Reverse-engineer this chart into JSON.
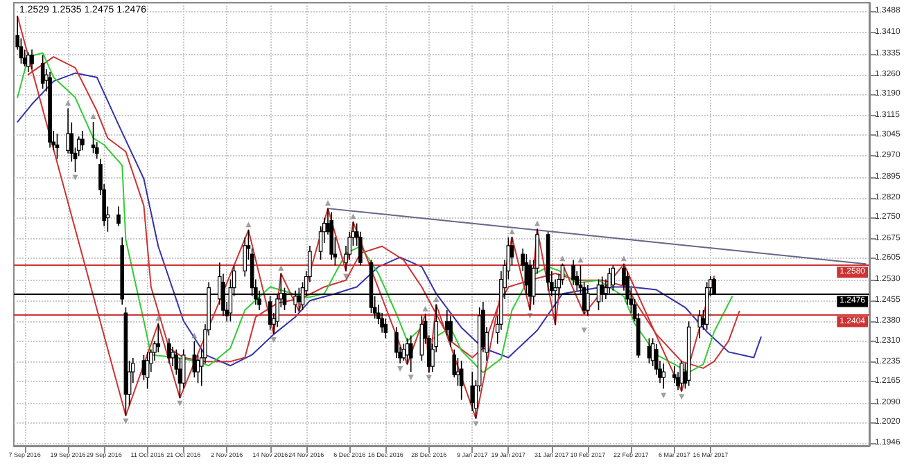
{
  "chart_data": {
    "type": "candlestick",
    "annotations": [
      "1.2529 1.2535 1.2475 1.2476"
    ],
    "color": "#000000",
    "x": [
      "2016-09-05",
      "2016-09-06",
      "2016-09-07",
      "2016-09-08",
      "2016-09-09",
      "2016-09-12",
      "2016-09-13",
      "2016-09-14",
      "2016-09-15",
      "2016-09-16",
      "2016-09-19",
      "2016-09-20",
      "2016-09-21",
      "2016-09-22",
      "2016-09-23",
      "2016-09-26",
      "2016-09-27",
      "2016-09-28",
      "2016-09-29",
      "2016-09-30",
      "2016-10-03",
      "2016-10-04",
      "2016-10-05",
      "2016-10-06",
      "2016-10-07",
      "2016-10-10",
      "2016-10-11",
      "2016-10-12",
      "2016-10-13",
      "2016-10-14",
      "2016-10-17",
      "2016-10-18",
      "2016-10-19",
      "2016-10-20",
      "2016-10-21",
      "2016-10-24",
      "2016-10-25",
      "2016-10-26",
      "2016-10-27",
      "2016-10-28",
      "2016-10-31",
      "2016-11-01",
      "2016-11-02",
      "2016-11-03",
      "2016-11-04",
      "2016-11-07",
      "2016-11-08",
      "2016-11-09",
      "2016-11-10",
      "2016-11-11",
      "2016-11-14",
      "2016-11-15",
      "2016-11-16",
      "2016-11-17",
      "2016-11-18",
      "2016-11-21",
      "2016-11-22",
      "2016-11-23",
      "2016-11-24",
      "2016-11-25",
      "2016-11-28",
      "2016-11-29",
      "2016-11-30",
      "2016-12-01",
      "2016-12-02",
      "2016-12-05",
      "2016-12-06",
      "2016-12-07",
      "2016-12-08",
      "2016-12-09",
      "2016-12-12",
      "2016-12-13",
      "2016-12-14",
      "2016-12-15",
      "2016-12-16",
      "2016-12-19",
      "2016-12-20",
      "2016-12-21",
      "2016-12-22",
      "2016-12-23",
      "2016-12-26",
      "2016-12-27",
      "2016-12-28",
      "2016-12-29",
      "2016-12-30",
      "2017-01-02",
      "2017-01-03",
      "2017-01-04",
      "2017-01-05",
      "2017-01-06",
      "2017-01-09",
      "2017-01-10",
      "2017-01-11",
      "2017-01-12",
      "2017-01-13",
      "2017-01-16",
      "2017-01-17",
      "2017-01-18",
      "2017-01-19",
      "2017-01-20",
      "2017-01-23",
      "2017-01-24",
      "2017-01-25",
      "2017-01-26",
      "2017-01-27",
      "2017-01-30",
      "2017-01-31",
      "2017-02-01",
      "2017-02-02",
      "2017-02-03",
      "2017-02-06",
      "2017-02-07",
      "2017-02-08",
      "2017-02-09",
      "2017-02-10",
      "2017-02-13",
      "2017-02-14",
      "2017-02-15",
      "2017-02-16",
      "2017-02-17",
      "2017-02-20",
      "2017-02-21",
      "2017-02-22",
      "2017-02-23",
      "2017-02-24",
      "2017-02-27",
      "2017-02-28",
      "2017-03-01",
      "2017-03-02",
      "2017-03-03",
      "2017-03-06",
      "2017-03-07",
      "2017-03-08",
      "2017-03-09",
      "2017-03-10",
      "2017-03-13",
      "2017-03-14",
      "2017-03-15",
      "2017-03-16",
      "2017-03-17"
    ],
    "ohlc": [
      [
        1.34,
        1.3469,
        1.335,
        1.336
      ],
      [
        1.336,
        1.339,
        1.33,
        1.332
      ],
      [
        1.332,
        1.335,
        1.329,
        1.33
      ],
      [
        1.329,
        1.334,
        1.327,
        1.333
      ],
      [
        1.333,
        1.335,
        1.328,
        1.33
      ],
      [
        1.33,
        1.333,
        1.321,
        1.323
      ],
      [
        1.324,
        1.328,
        1.32,
        1.326
      ],
      [
        1.325,
        1.327,
        1.3,
        1.302
      ],
      [
        1.302,
        1.306,
        1.299,
        1.301
      ],
      [
        1.301,
        1.305,
        1.296,
        1.3
      ],
      [
        1.299,
        1.314,
        1.298,
        1.305
      ],
      [
        1.305,
        1.309,
        1.295,
        1.298
      ],
      [
        1.298,
        1.3,
        1.2913,
        1.296
      ],
      [
        1.299,
        1.304,
        1.297,
        1.303
      ],
      [
        1.303,
        1.306,
        1.299,
        1.301
      ],
      [
        1.301,
        1.3092,
        1.298,
        1.3
      ],
      [
        1.3,
        1.302,
        1.296,
        1.298
      ],
      [
        1.294,
        1.296,
        1.283,
        1.285
      ],
      [
        1.285,
        1.287,
        1.272,
        1.274
      ],
      [
        1.275,
        1.279,
        1.27,
        1.276
      ],
      [
        1.276,
        1.279,
        1.272,
        1.273
      ],
      [
        1.265,
        1.268,
        1.244,
        1.246
      ],
      [
        1.241,
        1.243,
        1.2044,
        1.212
      ],
      [
        1.212,
        1.224,
        1.208,
        1.22
      ],
      [
        1.22,
        1.225,
        1.216,
        1.223
      ],
      [
        1.224,
        1.226,
        1.217,
        1.219
      ],
      [
        1.218,
        1.227,
        1.214,
        1.224
      ],
      [
        1.223,
        1.228,
        1.22,
        1.227
      ],
      [
        1.227,
        1.231,
        1.224,
        1.23
      ],
      [
        1.23,
        1.2372,
        1.227,
        1.229
      ],
      [
        1.23,
        1.232,
        1.223,
        1.225
      ],
      [
        1.225,
        1.229,
        1.222,
        1.227
      ],
      [
        1.226,
        1.228,
        1.219,
        1.221
      ],
      [
        1.221,
        1.225,
        1.2107,
        1.216
      ],
      [
        1.216,
        1.228,
        1.214,
        1.226
      ],
      [
        1.226,
        1.231,
        1.218,
        1.22
      ],
      [
        1.22,
        1.226,
        1.216,
        1.224
      ],
      [
        1.222,
        1.228,
        1.215,
        1.225
      ],
      [
        1.225,
        1.237,
        1.223,
        1.235
      ],
      [
        1.235,
        1.252,
        1.233,
        1.25
      ],
      [
        1.246,
        1.259,
        1.244,
        1.254
      ],
      [
        1.252,
        1.255,
        1.24,
        1.242
      ],
      [
        1.242,
        1.245,
        1.238,
        1.24
      ],
      [
        1.241,
        1.253,
        1.238,
        1.25
      ],
      [
        1.25,
        1.258,
        1.247,
        1.256
      ],
      [
        1.256,
        1.268,
        1.254,
        1.265
      ],
      [
        1.265,
        1.2706,
        1.26,
        1.264
      ],
      [
        1.262,
        1.264,
        1.247,
        1.25
      ],
      [
        1.25,
        1.253,
        1.244,
        1.246
      ],
      [
        1.246,
        1.249,
        1.242,
        1.244
      ],
      [
        1.245,
        1.247,
        1.235,
        1.237
      ],
      [
        1.237,
        1.241,
        1.2334,
        1.239
      ],
      [
        1.238,
        1.248,
        1.236,
        1.246
      ],
      [
        1.246,
        1.2551,
        1.243,
        1.248
      ],
      [
        1.248,
        1.25,
        1.242,
        1.244
      ],
      [
        1.244,
        1.249,
        1.241,
        1.247
      ],
      [
        1.247,
        1.25,
        1.2416,
        1.245
      ],
      [
        1.244,
        1.252,
        1.242,
        1.25
      ],
      [
        1.249,
        1.256,
        1.247,
        1.254
      ],
      [
        1.254,
        1.265,
        1.252,
        1.263
      ],
      [
        1.263,
        1.272,
        1.26,
        1.27
      ],
      [
        1.27,
        1.275,
        1.266,
        1.273
      ],
      [
        1.273,
        1.2783,
        1.269,
        1.27
      ],
      [
        1.274,
        1.277,
        1.26,
        1.262
      ],
      [
        1.262,
        1.268,
        1.258,
        1.261
      ],
      [
        1.259,
        1.265,
        1.256,
        1.262
      ],
      [
        1.262,
        1.27,
        1.26,
        1.268
      ],
      [
        1.268,
        1.2735,
        1.265,
        1.27
      ],
      [
        1.27,
        1.273,
        1.265,
        1.268
      ],
      [
        1.268,
        1.27,
        1.258,
        1.259
      ],
      [
        1.259,
        1.26,
        1.241,
        1.243
      ],
      [
        1.243,
        1.247,
        1.239,
        1.241
      ],
      [
        1.241,
        1.244,
        1.237,
        1.239
      ],
      [
        1.239,
        1.241,
        1.234,
        1.236
      ],
      [
        1.237,
        1.239,
        1.232,
        1.234
      ],
      [
        1.234,
        1.236,
        1.225,
        1.227
      ],
      [
        1.227,
        1.229,
        1.223,
        1.225
      ],
      [
        1.225,
        1.23,
        1.224,
        1.228
      ],
      [
        1.226,
        1.232,
        1.2227,
        1.23
      ],
      [
        1.23,
        1.233,
        1.22,
        1.225
      ],
      [
        1.226,
        1.24,
        1.224,
        1.237
      ],
      [
        1.238,
        1.2406,
        1.23,
        1.232
      ],
      [
        1.232,
        1.233,
        1.2198,
        1.222
      ],
      [
        1.222,
        1.23,
        1.22,
        1.228
      ],
      [
        1.229,
        1.244,
        1.227,
        1.238
      ],
      [
        1.238,
        1.242,
        1.233,
        1.235
      ],
      [
        1.238,
        1.24,
        1.229,
        1.231
      ],
      [
        1.226,
        1.228,
        1.218,
        1.219
      ],
      [
        1.219,
        1.225,
        1.215,
        1.22
      ],
      [
        1.221,
        1.224,
        1.21,
        1.215
      ],
      [
        1.215,
        1.22,
        1.206,
        1.209
      ],
      [
        1.207,
        1.217,
        1.2034,
        1.215
      ],
      [
        1.215,
        1.243,
        1.213,
        1.24
      ],
      [
        1.242,
        1.245,
        1.227,
        1.229
      ],
      [
        1.227,
        1.236,
        1.224,
        1.234
      ],
      [
        1.234,
        1.24,
        1.23,
        1.237
      ],
      [
        1.237,
        1.256,
        1.235,
        1.253
      ],
      [
        1.25,
        1.26,
        1.246,
        1.258
      ],
      [
        1.256,
        1.268,
        1.253,
        1.265
      ],
      [
        1.265,
        1.2681,
        1.258,
        1.261
      ],
      [
        1.262,
        1.264,
        1.256,
        1.258
      ],
      [
        1.259,
        1.262,
        1.248,
        1.251
      ],
      [
        1.258,
        1.26,
        1.242,
        1.247
      ],
      [
        1.247,
        1.26,
        1.244,
        1.257
      ],
      [
        1.257,
        1.271,
        1.255,
        1.269
      ],
      [
        1.269,
        1.27,
        1.249,
        1.252
      ],
      [
        1.252,
        1.256,
        1.247,
        1.249
      ],
      [
        1.249,
        1.253,
        1.2368,
        1.25
      ],
      [
        1.25,
        1.255,
        1.247,
        1.253
      ],
      [
        1.253,
        1.2585,
        1.251,
        1.258
      ],
      [
        1.258,
        1.26,
        1.251,
        1.253
      ],
      [
        1.254,
        1.256,
        1.249,
        1.251
      ],
      [
        1.251,
        1.258,
        1.248,
        1.25
      ],
      [
        1.25,
        1.252,
        1.2406,
        1.242
      ],
      [
        1.242,
        1.251,
        1.24,
        1.248
      ],
      [
        1.245,
        1.253,
        1.242,
        1.251
      ],
      [
        1.251,
        1.254,
        1.245,
        1.248
      ],
      [
        1.248,
        1.253,
        1.246,
        1.25
      ],
      [
        1.25,
        1.257,
        1.248,
        1.255
      ],
      [
        1.251,
        1.258,
        1.249,
        1.257
      ],
      [
        1.257,
        1.2585,
        1.249,
        1.251
      ],
      [
        1.254,
        1.256,
        1.244,
        1.246
      ],
      [
        1.246,
        1.25,
        1.241,
        1.244
      ],
      [
        1.244,
        1.246,
        1.238,
        1.239
      ],
      [
        1.239,
        1.241,
        1.225,
        1.226
      ],
      [
        1.229,
        1.232,
        1.223,
        1.225
      ],
      [
        1.224,
        1.232,
        1.222,
        1.23
      ],
      [
        1.228,
        1.23,
        1.219,
        1.221
      ],
      [
        1.221,
        1.224,
        1.216,
        1.218
      ],
      [
        1.218,
        1.223,
        1.214,
        1.22
      ],
      [
        1.219,
        1.222,
        1.216,
        1.218
      ],
      [
        1.218,
        1.22,
        1.2135,
        1.215
      ],
      [
        1.216,
        1.224,
        1.2131,
        1.223
      ],
      [
        1.22,
        1.223,
        1.214,
        1.216
      ],
      [
        1.217,
        1.238,
        1.215,
        1.236
      ],
      [
        1.236,
        1.242,
        1.232,
        1.24
      ],
      [
        1.239,
        1.242,
        1.235,
        1.237
      ],
      [
        1.237,
        1.252,
        1.235,
        1.25
      ],
      [
        1.25,
        1.2541,
        1.247,
        1.2529
      ],
      [
        1.2529,
        1.2535,
        1.2475,
        1.2476
      ]
    ],
    "series": [
      {
        "type": "line",
        "color": "#3333aa",
        "x": [
          "2016-09-05",
          "2016-09-09",
          "2016-09-15",
          "2016-09-21",
          "2016-09-27",
          "2016-10-03",
          "2016-10-10",
          "2016-10-14",
          "2016-10-21",
          "2016-10-27",
          "2016-11-03",
          "2016-11-09",
          "2016-11-15",
          "2016-11-21",
          "2016-11-25",
          "2016-12-02",
          "2016-12-08",
          "2016-12-14",
          "2016-12-20",
          "2016-12-26",
          "2016-12-30",
          "2017-01-06",
          "2017-01-12",
          "2017-01-19",
          "2017-01-27",
          "2017-02-03",
          "2017-02-14",
          "2017-02-22",
          "2017-03-01",
          "2017-03-09",
          "2017-03-15",
          "2017-03-21",
          "2017-03-28",
          "2017-03-30"
        ],
        "values": [
          1.3092,
          1.3155,
          1.3237,
          1.3266,
          1.3251,
          1.3082,
          1.2889,
          1.2648,
          1.2382,
          1.2261,
          1.2222,
          1.2261,
          1.2334,
          1.2396,
          1.2454,
          1.2479,
          1.2503,
          1.2575,
          1.2609,
          1.2575,
          1.2479,
          1.2358,
          1.2285,
          1.2251,
          1.2348,
          1.2479,
          1.2503,
          1.2503,
          1.2493,
          1.243,
          1.2343,
          1.2271,
          1.2251,
          1.2324
        ]
      },
      {
        "type": "line",
        "color": "#cc3333",
        "x": [
          "2016-09-08",
          "2016-09-15",
          "2016-09-21",
          "2016-09-27",
          "2016-09-30",
          "2016-10-05",
          "2016-10-10",
          "2016-10-12",
          "2016-10-17",
          "2016-10-21",
          "2016-10-27",
          "2016-11-03",
          "2016-11-07",
          "2016-11-10",
          "2016-11-16",
          "2016-11-23",
          "2016-11-29",
          "2016-12-05",
          "2016-12-09",
          "2016-12-15",
          "2016-12-21",
          "2016-12-26",
          "2017-01-03",
          "2017-01-09",
          "2017-01-12",
          "2017-01-16",
          "2017-01-19",
          "2017-01-25",
          "2017-02-01",
          "2017-02-07",
          "2017-02-14",
          "2017-02-21",
          "2017-02-23",
          "2017-03-01",
          "2017-03-08",
          "2017-03-14",
          "2017-03-17",
          "2017-03-21",
          "2017-03-24"
        ],
        "values": [
          1.3261,
          1.3324,
          1.3285,
          1.3131,
          1.3034,
          1.2986,
          1.2793,
          1.2503,
          1.2285,
          1.2251,
          1.2237,
          1.2237,
          1.2251,
          1.2396,
          1.2445,
          1.2464,
          1.2503,
          1.2527,
          1.2623,
          1.2648,
          1.2599,
          1.2503,
          1.231,
          1.2251,
          1.2285,
          1.243,
          1.2503,
          1.2527,
          1.2551,
          1.2527,
          1.2527,
          1.2503,
          1.2454,
          1.2334,
          1.2237,
          1.2213,
          1.2237,
          1.231,
          1.2416
        ]
      },
      {
        "type": "line",
        "color": "#33cc33",
        "x": [
          "2016-09-05",
          "2016-09-08",
          "2016-09-12",
          "2016-09-15",
          "2016-09-21",
          "2016-09-26",
          "2016-09-29",
          "2016-10-04",
          "2016-10-05",
          "2016-10-10",
          "2016-10-12",
          "2016-10-19",
          "2016-10-25",
          "2016-10-28",
          "2016-11-03",
          "2016-11-07",
          "2016-11-14",
          "2016-11-18",
          "2016-11-24",
          "2016-11-29",
          "2016-12-05",
          "2016-12-09",
          "2016-12-14",
          "2016-12-19",
          "2016-12-22",
          "2016-12-26",
          "2016-12-28",
          "2017-01-03",
          "2017-01-06",
          "2017-01-12",
          "2017-01-17",
          "2017-01-20",
          "2017-01-25",
          "2017-01-30",
          "2017-02-02",
          "2017-02-07",
          "2017-02-13",
          "2017-02-20",
          "2017-02-23",
          "2017-03-01",
          "2017-03-06",
          "2017-03-10",
          "2017-03-14",
          "2017-03-17",
          "2017-03-22"
        ],
        "values": [
          1.3179,
          1.3324,
          1.3338,
          1.3251,
          1.3179,
          1.3034,
          1.301,
          1.2937,
          1.2672,
          1.2382,
          1.2261,
          1.2251,
          1.2237,
          1.2222,
          1.2285,
          1.242,
          1.2503,
          1.2488,
          1.2464,
          1.2479,
          1.2623,
          1.2648,
          1.2551,
          1.2406,
          1.231,
          1.2358,
          1.231,
          1.2358,
          1.2276,
          1.2198,
          1.2247,
          1.242,
          1.2541,
          1.2575,
          1.2561,
          1.2517,
          1.2527,
          1.2469,
          1.2372,
          1.2261,
          1.2227,
          1.2198,
          1.2227,
          1.2343,
          1.2469
        ]
      },
      {
        "type": "line",
        "color": "#cc3333",
        "x": [
          "2016-09-05",
          "2016-10-05",
          "2016-10-14",
          "2016-10-20",
          "2016-11-08",
          "2016-11-15",
          "2016-11-17",
          "2016-11-22",
          "2016-11-30",
          "2016-12-05",
          "2016-12-07",
          "2016-12-22",
          "2016-12-27",
          "2016-12-28",
          "2016-12-30",
          "2017-01-10",
          "2017-01-20",
          "2017-01-25",
          "2017-01-27",
          "2017-02-01",
          "2017-02-03",
          "2017-02-09",
          "2017-02-20",
          "2017-03-08",
          "2017-03-17"
        ],
        "values": [
          1.3469,
          1.2044,
          1.2372,
          1.2107,
          1.2706,
          1.2334,
          1.2551,
          1.2416,
          1.2783,
          1.256,
          1.2735,
          1.2227,
          1.2406,
          1.2198,
          1.244,
          1.2034,
          1.2681,
          1.242,
          1.271,
          1.2368,
          1.2585,
          1.2406,
          1.2585,
          1.2131,
          1.2541
        ]
      },
      {
        "type": "line",
        "color": "#666688",
        "x": [
          "2016-11-30",
          "2017-04-28"
        ],
        "values": [
          1.2783,
          1.2585
        ]
      },
      {
        "type": "scatter",
        "color": "#888888",
        "marker": "triangle",
        "x": [
          "2016-09-19",
          "2016-09-26",
          "2016-10-14",
          "2016-10-24",
          "2016-11-08",
          "2016-11-17",
          "2016-11-30",
          "2016-12-07",
          "2016-12-27",
          "2016-12-30",
          "2017-01-20",
          "2017-01-27",
          "2017-02-03",
          "2017-02-08",
          "2017-02-20"
        ],
        "values": [
          1.316,
          1.3112,
          1.2392,
          1.233,
          1.2726,
          1.2571,
          1.2803,
          1.2755,
          1.2426,
          1.246,
          1.2701,
          1.273,
          1.2605,
          1.26,
          1.2605
        ]
      },
      {
        "type": "scatter",
        "color": "#888888",
        "marker": "triangle_down",
        "x": [
          "2016-09-21",
          "2016-10-05",
          "2016-10-20",
          "2016-11-15",
          "2016-12-05",
          "2016-12-20",
          "2016-12-23",
          "2016-12-28",
          "2017-01-10",
          "2017-01-25",
          "2017-02-09",
          "2017-03-03",
          "2017-03-08"
        ],
        "values": [
          1.2893,
          1.2024,
          1.2087,
          1.2314,
          1.254,
          1.221,
          1.218,
          1.2178,
          1.2014,
          1.24,
          1.2348,
          1.2115,
          1.2111
        ]
      }
    ],
    "xlim": [
      "2016-09-04",
      "2017-04-29"
    ],
    "xticks": [
      {
        "value": "2016-09-07",
        "label": "7 Sep 2016"
      },
      {
        "value": "2016-09-19",
        "label": "19 Sep 2016"
      },
      {
        "value": "2016-09-29",
        "label": "29 Sep 2016"
      },
      {
        "value": "2016-10-11",
        "label": "11 Oct 2016"
      },
      {
        "value": "2016-10-21",
        "label": "21 Oct 2016"
      },
      {
        "value": "2016-11-02",
        "label": "2 Nov 2016"
      },
      {
        "value": "2016-11-14",
        "label": "14 Nov 2016"
      },
      {
        "value": "2016-11-24",
        "label": "24 Nov 2016"
      },
      {
        "value": "2016-12-06",
        "label": "6 Dec 2016"
      },
      {
        "value": "2016-12-16",
        "label": "16 Dec 2016"
      },
      {
        "value": "2016-12-28",
        "label": "28 Dec 2016"
      },
      {
        "value": "2017-01-09",
        "label": "9 Jan 2017"
      },
      {
        "value": "2017-01-19",
        "label": "19 Jan 2017"
      },
      {
        "value": "2017-01-31",
        "label": "31 Jan 2017"
      },
      {
        "value": "2017-02-10",
        "label": "10 Feb 2017"
      },
      {
        "value": "2017-02-22",
        "label": "22 Feb 2017"
      },
      {
        "value": "2017-03-06",
        "label": "6 Mar 2017"
      },
      {
        "value": "2017-03-16",
        "label": "16 Mar 2017"
      }
    ],
    "ylim": [
      1.1936,
      1.3517
    ],
    "yticks": [
      1.1946,
      {
        "value": 1.202,
        "label": "1.2020"
      },
      {
        "value": 1.209,
        "label": "1.2090"
      },
      1.2165,
      1.2235,
      {
        "value": 1.231,
        "label": "1.2310"
      },
      {
        "value": 1.238,
        "label": "1.2380"
      },
      1.2455,
      {
        "value": 1.253,
        "label": "1.2530"
      },
      1.2605,
      1.2675,
      {
        "value": 1.275,
        "label": "1.2750"
      },
      {
        "value": 1.282,
        "label": "1.2820"
      },
      1.2895,
      {
        "value": 1.297,
        "label": "1.2970"
      },
      1.3045,
      1.3115,
      {
        "value": 1.319,
        "label": "1.3190"
      },
      {
        "value": 1.326,
        "label": "1.3260"
      },
      1.3335,
      {
        "value": 1.341,
        "label": "1.3410"
      },
      1.3488
    ],
    "ref_lines": [
      {
        "axis": "y",
        "value": 1.258,
        "label": "1.2580",
        "color": "#cc3333"
      },
      {
        "axis": "y",
        "value": 1.2476,
        "label": "1.2476",
        "color": "#000000"
      },
      {
        "axis": "y",
        "value": 1.2404,
        "label": "1.2404",
        "color": "#cc3333"
      }
    ],
    "grid": true,
    "marker": "none",
    "line_style": "solid"
  }
}
